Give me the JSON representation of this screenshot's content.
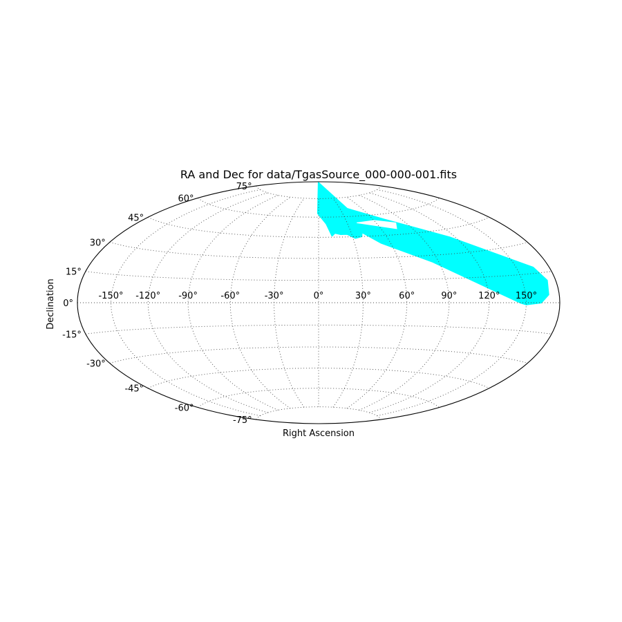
{
  "chart_data": {
    "type": "scatter",
    "projection": "hammer",
    "title": "RA and Dec for data/TgasSource_000-000-001.fits",
    "xlabel": "Right Ascension",
    "ylabel": "Declination",
    "x_ticks": [
      "-150°",
      "-120°",
      "-90°",
      "-60°",
      "-30°",
      "0°",
      "30°",
      "60°",
      "90°",
      "120°",
      "150°"
    ],
    "y_ticks": [
      "-75°",
      "-60°",
      "-45°",
      "-30°",
      "-15°",
      "0°",
      "15°",
      "30°",
      "45°",
      "60°",
      "75°"
    ],
    "grid": true,
    "series": [
      {
        "color": "#00ffff",
        "region_outline": [
          {
            "ra": -1,
            "dec": 89
          },
          {
            "ra": 40,
            "dec": 66
          },
          {
            "ra": 72,
            "dec": 56
          },
          {
            "ra": 115,
            "dec": 40
          },
          {
            "ra": 165,
            "dec": 18
          },
          {
            "ra": 172,
            "dec": 11
          },
          {
            "ra": 170,
            "dec": 4
          },
          {
            "ra": 163,
            "dec": 0
          },
          {
            "ra": 150,
            "dec": -1
          },
          {
            "ra": 145,
            "dec": 0
          },
          {
            "ra": 130,
            "dec": 5
          },
          {
            "ra": 85,
            "dec": 26
          },
          {
            "ra": 52,
            "dec": 40
          },
          {
            "ra": 40,
            "dec": 48
          },
          {
            "ra": 38,
            "dec": 45
          },
          {
            "ra": 32,
            "dec": 44
          },
          {
            "ra": 26,
            "dec": 47
          },
          {
            "ra": 20,
            "dec": 47
          },
          {
            "ra": 15,
            "dec": 48
          },
          {
            "ra": 12,
            "dec": 46
          },
          {
            "ra": 8,
            "dec": 55
          },
          {
            "ra": -1,
            "dec": 63
          }
        ],
        "region_notch": [
          {
            "ra": 40,
            "dec": 55
          },
          {
            "ra": 75,
            "dec": 49
          },
          {
            "ra": 80,
            "dec": 53
          },
          {
            "ra": 60,
            "dec": 56
          }
        ]
      }
    ]
  }
}
